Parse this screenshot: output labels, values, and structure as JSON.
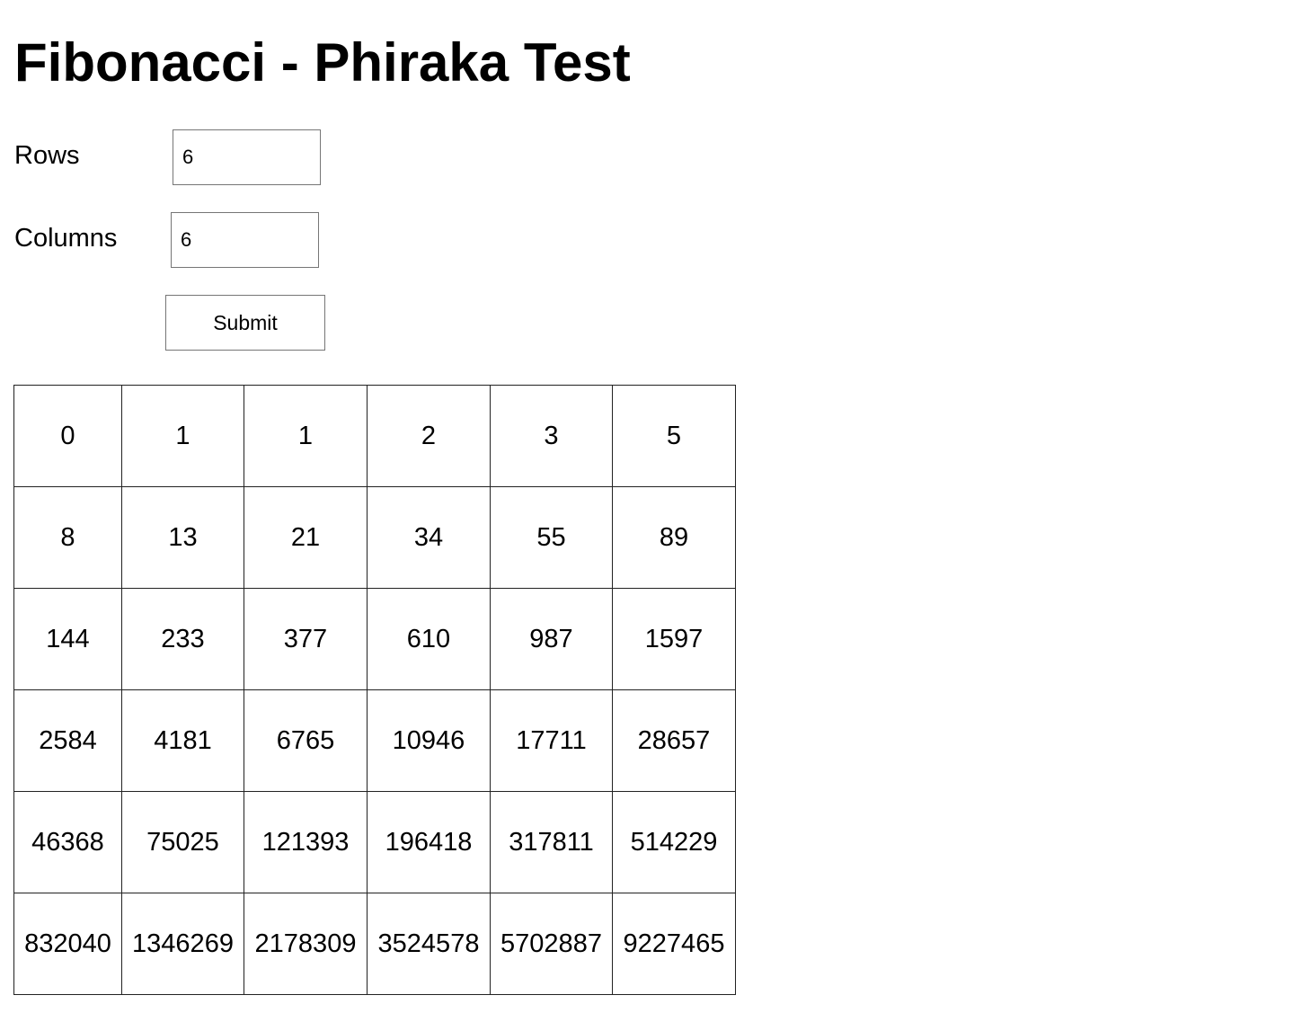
{
  "page": {
    "title": "Fibonacci - Phiraka Test"
  },
  "form": {
    "rows_label": "Rows",
    "rows_value": "6",
    "columns_label": "Columns",
    "columns_value": "6",
    "submit_label": "Submit"
  },
  "table": {
    "rows": [
      [
        "0",
        "1",
        "1",
        "2",
        "3",
        "5"
      ],
      [
        "8",
        "13",
        "21",
        "34",
        "55",
        "89"
      ],
      [
        "144",
        "233",
        "377",
        "610",
        "987",
        "1597"
      ],
      [
        "2584",
        "4181",
        "6765",
        "10946",
        "17711",
        "28657"
      ],
      [
        "46368",
        "75025",
        "121393",
        "196418",
        "317811",
        "514229"
      ],
      [
        "832040",
        "1346269",
        "2178309",
        "3524578",
        "5702887",
        "9227465"
      ]
    ]
  }
}
